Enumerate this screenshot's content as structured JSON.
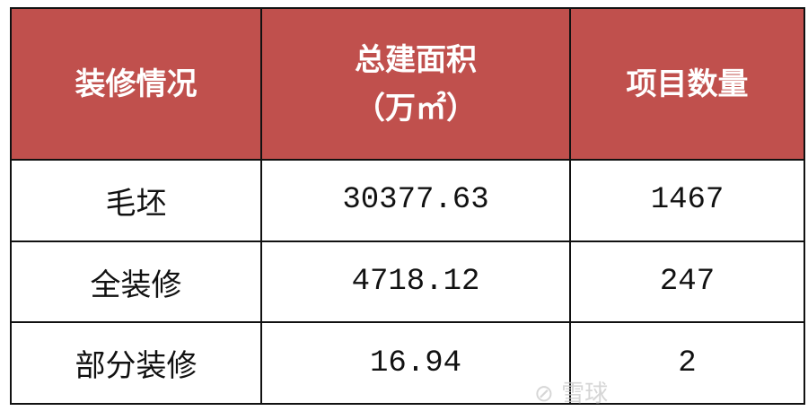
{
  "table": {
    "headers": [
      "装修情况",
      "总建面积",
      "（万㎡）",
      "项目数量"
    ],
    "rows": [
      [
        "毛坯",
        "30377.63",
        "1467"
      ],
      [
        "全装修",
        "4718.12",
        "247"
      ],
      [
        "部分装修",
        "16.94",
        "2"
      ]
    ]
  },
  "watermark": "雪球",
  "colors": {
    "header_bg": "#c0504d",
    "header_text": "#ffffff"
  }
}
